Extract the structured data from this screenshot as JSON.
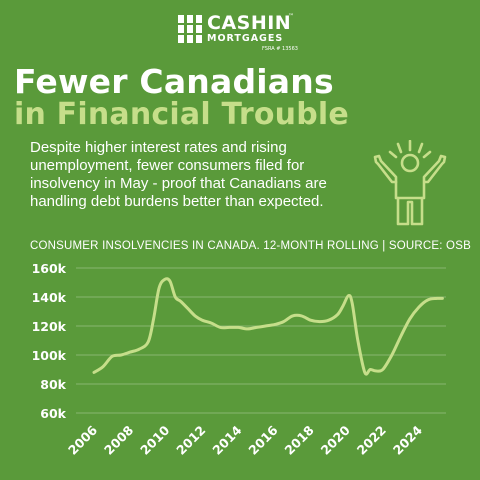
{
  "brand": {
    "name": "CASHIN",
    "tm": "™",
    "sub": "MORTGAGES",
    "reg": "FSRA # 13563"
  },
  "headline": {
    "line1": "Fewer Canadians",
    "line2": "in Financial Trouble"
  },
  "description": "Despite higher interest rates and rising unemployment, fewer consumers filed for insolvency in May - proof that Canadians are handling debt burdens better than expected.",
  "icon": "celebrating-person-icon",
  "colors": {
    "background": "#5a9a3a",
    "accent": "#c6de8a",
    "line": "#c6de8a"
  },
  "chart_data": {
    "type": "line",
    "title": "CONSUMER INSOLVENCIES IN CANADA. 12-MONTH ROLLING | SOURCE: OSB",
    "xlabel": "",
    "ylabel": "",
    "ylim": [
      60000,
      160000
    ],
    "xlim": [
      2005,
      2025.5
    ],
    "yticks": [
      60000,
      80000,
      100000,
      120000,
      140000,
      160000
    ],
    "ytick_labels": [
      "60k",
      "80k",
      "100k",
      "120k",
      "140k",
      "160k"
    ],
    "xticks": [
      2006,
      2008,
      2010,
      2012,
      2014,
      2016,
      2018,
      2020,
      2022,
      2024
    ],
    "xtick_labels": [
      "2006",
      "2008",
      "2010",
      "2012",
      "2014",
      "2016",
      "2018",
      "2020",
      "2022",
      "2024"
    ],
    "grid": true,
    "series": [
      {
        "x": [
          2006,
          2006.5,
          2007,
          2007.5,
          2008,
          2008.5,
          2009,
          2009.3,
          2009.6,
          2009.9,
          2010.2,
          2010.5,
          2010.8,
          2011.2,
          2011.6,
          2012,
          2012.5,
          2013,
          2013.5,
          2014,
          2014.5,
          2015,
          2015.5,
          2016,
          2016.5,
          2017,
          2017.5,
          2018,
          2018.5,
          2019,
          2019.5,
          2019.8,
          2020.1,
          2020.3,
          2020.6,
          2021,
          2021.3,
          2021.6,
          2022,
          2022.5,
          2023,
          2023.5,
          2024,
          2024.5,
          2025,
          2025.3
        ],
        "values": [
          88000,
          92000,
          99000,
          100000,
          102000,
          104000,
          109000,
          125000,
          146000,
          152000,
          151000,
          140000,
          137000,
          132000,
          127000,
          124000,
          122000,
          119000,
          119000,
          119000,
          118000,
          119000,
          120000,
          121000,
          123000,
          127000,
          127000,
          124000,
          123000,
          124000,
          128000,
          134000,
          141000,
          136000,
          111000,
          88000,
          90000,
          89000,
          90000,
          100000,
          113000,
          125000,
          133000,
          138000,
          139000,
          139000
        ]
      }
    ]
  }
}
